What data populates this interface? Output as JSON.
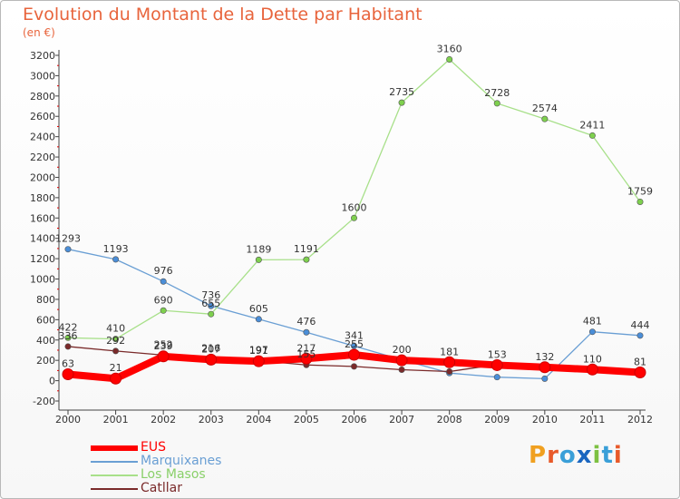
{
  "title": "Evolution du Montant de la Dette par Habitant",
  "unit_label": "(en €)",
  "chart_data": {
    "type": "line",
    "title": "Evolution du Montant de la Dette par Habitant",
    "subtitle": "(en €)",
    "x": [
      "2000",
      "2001",
      "2002",
      "2003",
      "2004",
      "2005",
      "2006",
      "2007",
      "2008",
      "2009",
      "2010",
      "2011",
      "2012"
    ],
    "ylim": [
      -200,
      3200
    ],
    "yticks": [
      -200,
      0,
      200,
      400,
      600,
      800,
      1000,
      1200,
      1400,
      1600,
      1800,
      2000,
      2200,
      2400,
      2600,
      2800,
      3000,
      3200
    ],
    "grid": false,
    "legend_position": "bottom-left",
    "series": [
      {
        "name": "EUS",
        "color": "#ff0000",
        "marker": "#ff0000",
        "values": [
          63,
          21,
          239,
          207,
          191,
          217,
          255,
          200,
          181,
          153,
          132,
          110,
          81
        ],
        "labels": [
          "63",
          "21",
          "239",
          "207",
          "191",
          "217",
          "255",
          "200",
          "181",
          "153",
          "132",
          "110",
          "81"
        ]
      },
      {
        "name": "Marquixanes",
        "color": "#6a9fd4",
        "marker": "#4a8ed8",
        "values": [
          1293,
          1193,
          976,
          736,
          605,
          476,
          341,
          206,
          75,
          35,
          20,
          481,
          444
        ],
        "labels": [
          "1293",
          "1193",
          "976",
          "736",
          "605",
          "476",
          "341",
          "",
          "",
          "",
          "",
          "481",
          "444"
        ]
      },
      {
        "name": "Los Masos",
        "color": "#a8e08a",
        "marker": "#7ed04e",
        "values": [
          422,
          410,
          690,
          655,
          1189,
          1191,
          1600,
          2735,
          3160,
          2728,
          2574,
          2411,
          1759
        ],
        "labels": [
          "422",
          "410",
          "690",
          "655",
          "1189",
          "1191",
          "1600",
          "2735",
          "3160",
          "2728",
          "2574",
          "2411",
          "1759"
        ]
      },
      {
        "name": "Catllar",
        "color": "#7a2a2a",
        "marker": "#7a2a2a",
        "values": [
          336,
          292,
          252,
          216,
          197,
          155,
          140,
          108,
          90,
          158,
          140,
          106,
          94
        ],
        "labels": [
          "336",
          "292",
          "252",
          "216",
          "197",
          "155",
          "",
          "",
          "",
          "",
          "",
          "",
          ""
        ]
      }
    ]
  },
  "legend": [
    {
      "label": "EUS",
      "color": "#ff0000"
    },
    {
      "label": "Marquixanes",
      "color": "#6a9fd4"
    },
    {
      "label": "Los Masos",
      "color": "#a8e08a"
    },
    {
      "label": "Catllar",
      "color": "#7a2a2a"
    }
  ],
  "logo": {
    "text": "Proxiti"
  }
}
